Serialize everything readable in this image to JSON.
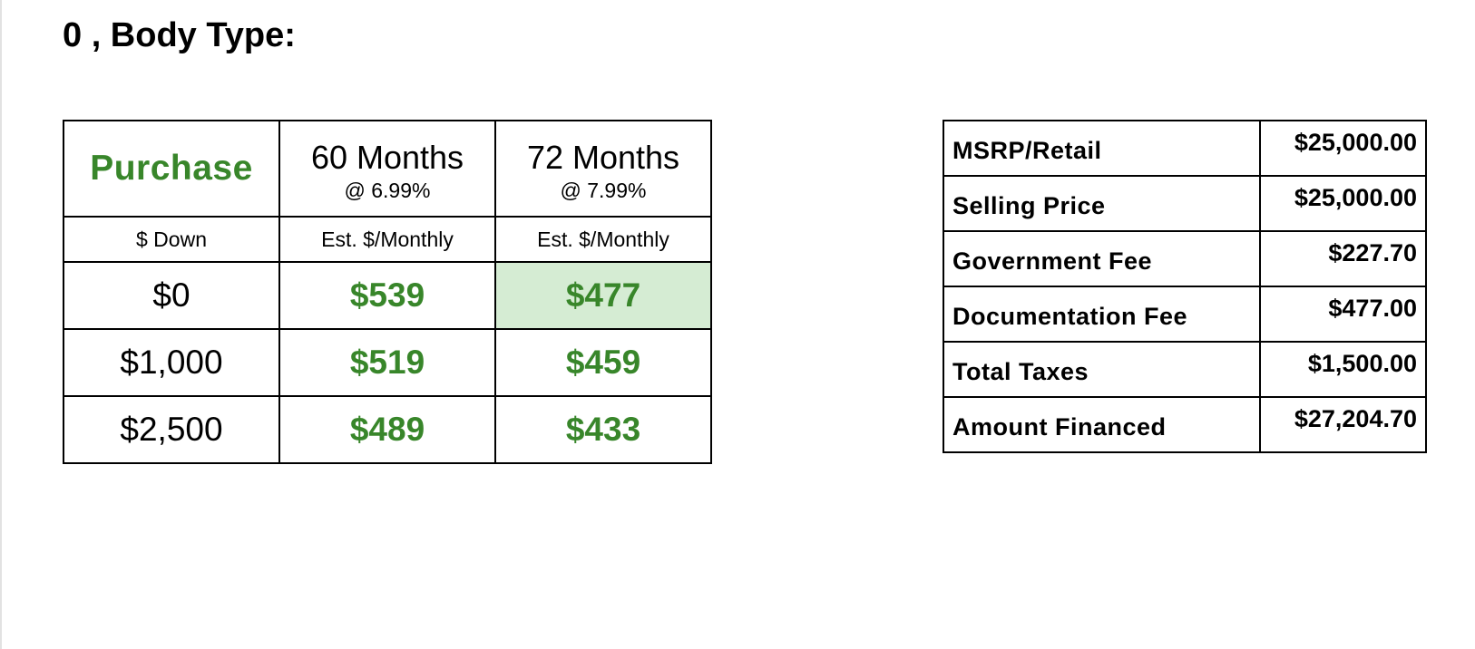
{
  "title": "0 , Body Type:",
  "purchase_table": {
    "label": "Purchase",
    "terms": [
      {
        "months": "60 Months",
        "rate": "@ 6.99%"
      },
      {
        "months": "72 Months",
        "rate": "@ 7.99%"
      }
    ],
    "down_header": "$ Down",
    "monthly_header": "Est. $/Monthly",
    "rows": [
      {
        "down": "$0",
        "p60": "$539",
        "p72": "$477"
      },
      {
        "down": "$1,000",
        "p60": "$519",
        "p72": "$459"
      },
      {
        "down": "$2,500",
        "p60": "$489",
        "p72": "$433"
      }
    ],
    "highlight_color": "#d5ecd3",
    "accent_color": "#38862a"
  },
  "summary": [
    {
      "label": "MSRP/Retail",
      "value": "$25,000.00"
    },
    {
      "label": "Selling Price",
      "value": "$25,000.00"
    },
    {
      "label": "Government Fee",
      "value": "$227.70"
    },
    {
      "label": "Documentation Fee",
      "value": "$477.00"
    },
    {
      "label": "Total Taxes",
      "value": "$1,500.00"
    },
    {
      "label": "Amount Financed",
      "value": "$27,204.70"
    }
  ]
}
